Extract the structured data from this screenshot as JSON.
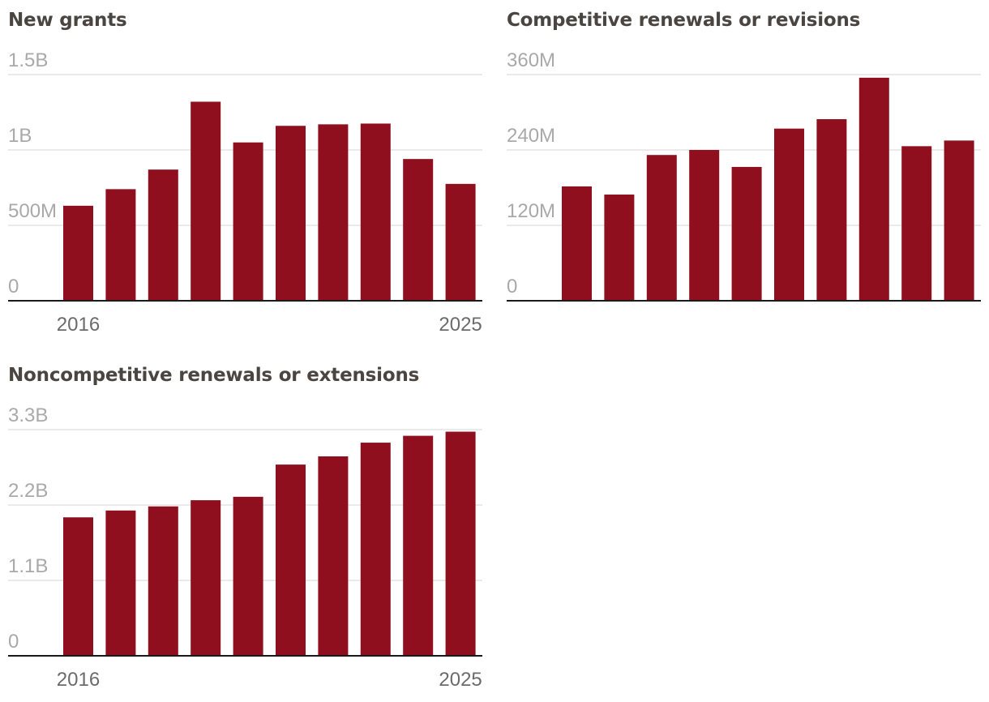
{
  "chart_data": [
    {
      "type": "bar",
      "title": "New grants",
      "categories": [
        "2016",
        "2017",
        "2018",
        "2019",
        "2020",
        "2021",
        "2022",
        "2023",
        "2024",
        "2025"
      ],
      "values": [
        630000000,
        740000000,
        870000000,
        1320000000,
        1050000000,
        1160000000,
        1170000000,
        1175000000,
        940000000,
        775000000
      ],
      "ylim": [
        0,
        1500000000
      ],
      "yticks": [
        0,
        500000000,
        1000000000,
        1500000000
      ],
      "ytick_labels": [
        "0",
        "500M",
        "1B",
        "1.5B"
      ],
      "x_tick_labels": [
        "2016",
        "2025"
      ],
      "color": "#8f0f1e"
    },
    {
      "type": "bar",
      "title": "Competitive renewals or revisions",
      "categories": [
        "2016",
        "2017",
        "2018",
        "2019",
        "2020",
        "2021",
        "2022",
        "2023",
        "2024",
        "2025"
      ],
      "values": [
        182000000,
        169000000,
        232000000,
        240000000,
        213000000,
        274000000,
        289000000,
        355000000,
        246000000,
        255000000
      ],
      "ylim": [
        0,
        360000000
      ],
      "yticks": [
        0,
        120000000,
        240000000,
        360000000
      ],
      "ytick_labels": [
        "0",
        "120M",
        "240M",
        "360M"
      ],
      "x_tick_labels": [],
      "color": "#8f0f1e"
    },
    {
      "type": "bar",
      "title": "Noncompetitive renewals or extensions",
      "categories": [
        "2016",
        "2017",
        "2018",
        "2019",
        "2020",
        "2021",
        "2022",
        "2023",
        "2024",
        "2025"
      ],
      "values": [
        2020000000,
        2120000000,
        2180000000,
        2270000000,
        2320000000,
        2790000000,
        2910000000,
        3110000000,
        3210000000,
        3270000000
      ],
      "ylim": [
        0,
        3300000000
      ],
      "yticks": [
        0,
        1100000000,
        2200000000,
        3300000000
      ],
      "ytick_labels": [
        "0",
        "1.1B",
        "2.2B",
        "3.3B"
      ],
      "x_tick_labels": [
        "2016",
        "2025"
      ],
      "color": "#8f0f1e"
    }
  ]
}
